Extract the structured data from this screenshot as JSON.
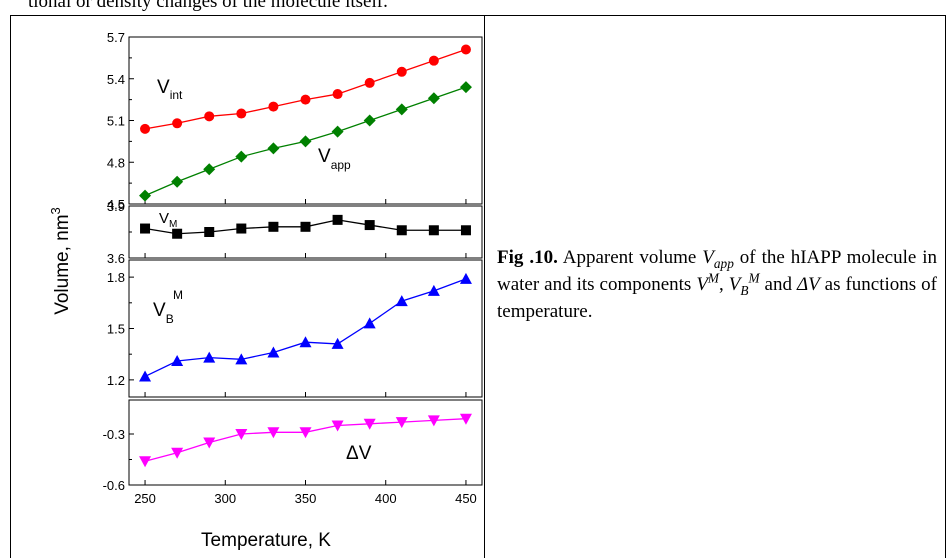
{
  "page": {
    "top_text": "tional or density changes of the molecule itself."
  },
  "caption": {
    "label": "Fig .10.",
    "t1": " Apparent volume ",
    "v": "V",
    "app": "app",
    "t2": " of the hIAPP molecule in water and its components ",
    "sup_m": "M",
    "t3": ", ",
    "sub_b": "B",
    "t4": " and ",
    "delta_v": "ΔV",
    "t5": " as functions of temperature."
  },
  "chart_data": {
    "type": "line",
    "xlabel": "Temperature, K",
    "ylabel": "Volume, nm³",
    "ylabel_main": "Volume, nm",
    "ylabel_sup": "3",
    "xlim": [
      240,
      460
    ],
    "xticks": [
      250,
      300,
      350,
      400,
      450
    ],
    "x": [
      250,
      270,
      290,
      310,
      330,
      350,
      370,
      390,
      410,
      430,
      450
    ],
    "panels": [
      {
        "id": "top",
        "ylim": [
          4.5,
          5.7
        ],
        "yticks": [
          "4.5",
          "4.8",
          "5.1",
          "5.4",
          "5.7"
        ],
        "series": [
          {
            "name": "V_int",
            "label_main": "V",
            "label_sub": "int",
            "color": "#ff0000",
            "marker": "circle",
            "values": [
              5.04,
              5.08,
              5.13,
              5.15,
              5.2,
              5.25,
              5.29,
              5.37,
              5.45,
              5.53,
              5.61
            ]
          },
          {
            "name": "V_app",
            "label_main": "V",
            "label_sub": "app",
            "color": "#008000",
            "marker": "diamond",
            "values": [
              4.56,
              4.66,
              4.75,
              4.84,
              4.9,
              4.95,
              5.02,
              5.1,
              5.18,
              5.26,
              5.34
            ]
          }
        ]
      },
      {
        "id": "vm",
        "ylim": [
          3.6,
          3.9
        ],
        "yticks": [
          "3.6",
          "3.9"
        ],
        "series": [
          {
            "name": "V_M",
            "label_main": "V",
            "label_sub": "M",
            "color": "#000000",
            "marker": "square",
            "values": [
              3.77,
              3.74,
              3.75,
              3.77,
              3.78,
              3.78,
              3.82,
              3.79,
              3.76,
              3.76,
              3.76
            ]
          }
        ]
      },
      {
        "id": "vb",
        "ylim": [
          1.1,
          1.9
        ],
        "yticks": [
          "1.2",
          "1.5",
          "1.8"
        ],
        "series": [
          {
            "name": "V_B^M",
            "label_main": "V",
            "label_sub": "B",
            "label_sup": "M",
            "color": "#0000ff",
            "marker": "triangle-up",
            "values": [
              1.22,
              1.31,
              1.33,
              1.32,
              1.36,
              1.42,
              1.41,
              1.53,
              1.66,
              1.72,
              1.79
            ]
          }
        ]
      },
      {
        "id": "dv",
        "ylim": [
          -0.6,
          -0.1
        ],
        "yticks": [
          "-0.3",
          "-0.6"
        ],
        "series": [
          {
            "name": "ΔV",
            "label_main": "ΔV",
            "color": "#ff00ff",
            "marker": "triangle-down",
            "values": [
              -0.46,
              -0.41,
              -0.35,
              -0.3,
              -0.29,
              -0.29,
              -0.25,
              -0.24,
              -0.23,
              -0.22,
              -0.21
            ]
          }
        ]
      }
    ]
  }
}
